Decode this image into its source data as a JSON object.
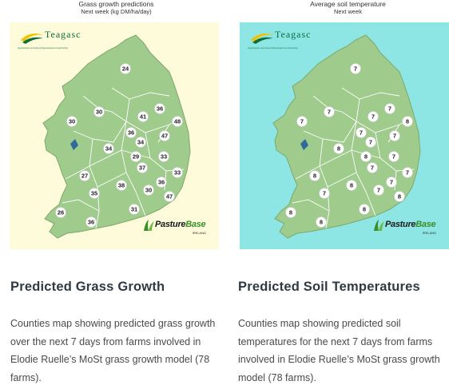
{
  "cards": [
    {
      "map_title": "Grass growth predictions",
      "map_subtitle": "Next week (kg DM/ha/day)",
      "heading": "Predicted Grass Growth",
      "description": "Counties map showing predicted grass growth over the next 7 days from farms involved in Elodie Ruelle’s MoSt grass growth model (78 farms).",
      "background_color": "#fdfbd9",
      "values": [
        "24",
        "30",
        "41",
        "36",
        "48",
        "30",
        "36",
        "47",
        "34",
        "34",
        "29",
        "33",
        "37",
        "27",
        "33",
        "36",
        "38",
        "30",
        "35",
        "47",
        "31",
        "26",
        "36"
      ]
    },
    {
      "map_title": "Average soil temperature",
      "map_subtitle": "Next week",
      "heading": "Predicted Soil Temperatures",
      "description": "Counties map showing predicted soil temperatures for the next 7 days from farms involved in Elodie Ruelle’s MoSt grass growth model (78 farms).",
      "background_color": "#8de6e4",
      "values": [
        "7",
        "7",
        "7",
        "7",
        "8",
        "7",
        "7",
        "7",
        "8",
        "7",
        "8",
        "7",
        "7",
        "8",
        "7",
        "7",
        "8",
        "7",
        "7",
        "8",
        "8",
        "8",
        "8"
      ]
    }
  ],
  "logo_teagasc": {
    "text": "Teagasc",
    "tagline": "Agriculture and Food Development Authority"
  },
  "logo_pasturebase": {
    "name_part1": "Pasture",
    "name_part2": "Base",
    "sub": "IRELAND"
  },
  "map_color": "#9fcb8c",
  "county_line_color": "#ffffff"
}
